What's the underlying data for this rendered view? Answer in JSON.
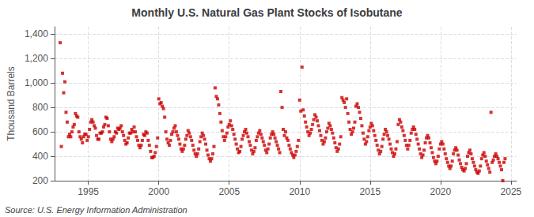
{
  "chart_data": {
    "type": "scatter",
    "title": "Monthly U.S. Natural Gas Plant Stocks of Isobutane",
    "ylabel": "Thousand Barrels",
    "annotation": "Source: U.S. Energy Information Administration",
    "color": "#cc0000",
    "marker": "square",
    "grid": true,
    "xlim": [
      1992.6,
      2025.4
    ],
    "ylim": [
      200,
      1460
    ],
    "xticks": [
      1995,
      2000,
      2005,
      2010,
      2015,
      2020,
      2025
    ],
    "yticks": [
      200,
      400,
      600,
      800,
      {
        "value": 1000,
        "label": "1,000"
      },
      {
        "value": 1200,
        "label": "1,200"
      },
      {
        "value": 1400,
        "label": "1,400"
      }
    ],
    "x": [
      1993.0,
      1993.083,
      1993.167,
      1993.25,
      1993.333,
      1993.417,
      1993.5,
      1993.583,
      1993.667,
      1993.75,
      1993.833,
      1993.917,
      1994.0,
      1994.083,
      1994.167,
      1994.25,
      1994.333,
      1994.417,
      1994.5,
      1994.583,
      1994.667,
      1994.75,
      1994.833,
      1994.917,
      1995.0,
      1995.083,
      1995.167,
      1995.25,
      1995.333,
      1995.417,
      1995.5,
      1995.583,
      1995.667,
      1995.75,
      1995.833,
      1995.917,
      1996.0,
      1996.083,
      1996.167,
      1996.25,
      1996.333,
      1996.417,
      1996.5,
      1996.583,
      1996.667,
      1996.75,
      1996.833,
      1996.917,
      1997.0,
      1997.083,
      1997.167,
      1997.25,
      1997.333,
      1997.417,
      1997.5,
      1997.583,
      1997.667,
      1997.75,
      1997.833,
      1997.917,
      1998.0,
      1998.083,
      1998.167,
      1998.25,
      1998.333,
      1998.417,
      1998.5,
      1998.583,
      1998.667,
      1998.75,
      1998.833,
      1998.917,
      1999.0,
      1999.083,
      1999.167,
      1999.25,
      1999.333,
      1999.417,
      1999.5,
      1999.583,
      1999.667,
      1999.75,
      1999.833,
      1999.917,
      2000.0,
      2000.083,
      2000.167,
      2000.25,
      2000.333,
      2000.417,
      2000.5,
      2000.583,
      2000.667,
      2000.75,
      2000.833,
      2000.917,
      2001.0,
      2001.083,
      2001.167,
      2001.25,
      2001.333,
      2001.417,
      2001.5,
      2001.583,
      2001.667,
      2001.75,
      2001.833,
      2001.917,
      2002.0,
      2002.083,
      2002.167,
      2002.25,
      2002.333,
      2002.417,
      2002.5,
      2002.583,
      2002.667,
      2002.75,
      2002.833,
      2002.917,
      2003.0,
      2003.083,
      2003.167,
      2003.25,
      2003.333,
      2003.417,
      2003.5,
      2003.583,
      2003.667,
      2003.75,
      2003.833,
      2003.917,
      2004.0,
      2004.083,
      2004.167,
      2004.25,
      2004.333,
      2004.417,
      2004.5,
      2004.583,
      2004.667,
      2004.75,
      2004.833,
      2004.917,
      2005.0,
      2005.083,
      2005.167,
      2005.25,
      2005.333,
      2005.417,
      2005.5,
      2005.583,
      2005.667,
      2005.75,
      2005.833,
      2005.917,
      2006.0,
      2006.083,
      2006.167,
      2006.25,
      2006.333,
      2006.417,
      2006.5,
      2006.583,
      2006.667,
      2006.75,
      2006.833,
      2006.917,
      2007.0,
      2007.083,
      2007.167,
      2007.25,
      2007.333,
      2007.417,
      2007.5,
      2007.583,
      2007.667,
      2007.75,
      2007.833,
      2007.917,
      2008.0,
      2008.083,
      2008.167,
      2008.25,
      2008.333,
      2008.417,
      2008.5,
      2008.583,
      2008.667,
      2008.75,
      2008.833,
      2008.917,
      2009.0,
      2009.083,
      2009.167,
      2009.25,
      2009.333,
      2009.417,
      2009.5,
      2009.583,
      2009.667,
      2009.75,
      2009.833,
      2009.917,
      2010.0,
      2010.083,
      2010.167,
      2010.25,
      2010.333,
      2010.417,
      2010.5,
      2010.583,
      2010.667,
      2010.75,
      2010.833,
      2010.917,
      2011.0,
      2011.083,
      2011.167,
      2011.25,
      2011.333,
      2011.417,
      2011.5,
      2011.583,
      2011.667,
      2011.75,
      2011.833,
      2011.917,
      2012.0,
      2012.083,
      2012.167,
      2012.25,
      2012.333,
      2012.417,
      2012.5,
      2012.583,
      2012.667,
      2012.75,
      2012.833,
      2012.917,
      2013.0,
      2013.083,
      2013.167,
      2013.25,
      2013.333,
      2013.417,
      2013.5,
      2013.583,
      2013.667,
      2013.75,
      2013.833,
      2013.917,
      2014.0,
      2014.083,
      2014.167,
      2014.25,
      2014.333,
      2014.417,
      2014.5,
      2014.583,
      2014.667,
      2014.75,
      2014.833,
      2014.917,
      2015.0,
      2015.083,
      2015.167,
      2015.25,
      2015.333,
      2015.417,
      2015.5,
      2015.583,
      2015.667,
      2015.75,
      2015.833,
      2015.917,
      2016.0,
      2016.083,
      2016.167,
      2016.25,
      2016.333,
      2016.417,
      2016.5,
      2016.583,
      2016.667,
      2016.75,
      2016.833,
      2016.917,
      2017.0,
      2017.083,
      2017.167,
      2017.25,
      2017.333,
      2017.417,
      2017.5,
      2017.583,
      2017.667,
      2017.75,
      2017.833,
      2017.917,
      2018.0,
      2018.083,
      2018.167,
      2018.25,
      2018.333,
      2018.417,
      2018.5,
      2018.583,
      2018.667,
      2018.75,
      2018.833,
      2018.917,
      2019.0,
      2019.083,
      2019.167,
      2019.25,
      2019.333,
      2019.417,
      2019.5,
      2019.583,
      2019.667,
      2019.75,
      2019.833,
      2019.917,
      2020.0,
      2020.083,
      2020.167,
      2020.25,
      2020.333,
      2020.417,
      2020.5,
      2020.583,
      2020.667,
      2020.75,
      2020.833,
      2020.917,
      2021.0,
      2021.083,
      2021.167,
      2021.25,
      2021.333,
      2021.417,
      2021.5,
      2021.583,
      2021.667,
      2021.75,
      2021.833,
      2021.917,
      2022.0,
      2022.083,
      2022.167,
      2022.25,
      2022.333,
      2022.417,
      2022.5,
      2022.583,
      2022.667,
      2022.75,
      2022.833,
      2022.917,
      2023.0,
      2023.083,
      2023.167,
      2023.25,
      2023.333,
      2023.417,
      2023.5,
      2023.583,
      2023.667,
      2023.75,
      2023.833,
      2023.917,
      2024.0,
      2024.083,
      2024.167,
      2024.25,
      2024.333,
      2024.417,
      2024.5,
      2024.583
    ],
    "values": [
      1330,
      480,
      1080,
      920,
      1010,
      760,
      680,
      560,
      580,
      560,
      600,
      640,
      660,
      750,
      730,
      720,
      600,
      560,
      540,
      510,
      560,
      580,
      580,
      530,
      560,
      620,
      680,
      700,
      680,
      650,
      630,
      570,
      540,
      540,
      590,
      590,
      600,
      640,
      660,
      720,
      710,
      650,
      600,
      540,
      520,
      540,
      560,
      600,
      590,
      630,
      620,
      630,
      650,
      600,
      570,
      530,
      500,
      510,
      550,
      590,
      590,
      620,
      600,
      640,
      600,
      560,
      530,
      490,
      470,
      490,
      530,
      580,
      570,
      600,
      590,
      530,
      490,
      440,
      390,
      390,
      400,
      430,
      480,
      550,
      870,
      830,
      840,
      810,
      790,
      720,
      600,
      540,
      510,
      490,
      530,
      580,
      600,
      630,
      650,
      600,
      570,
      540,
      500,
      460,
      440,
      460,
      490,
      540,
      570,
      610,
      590,
      560,
      530,
      490,
      450,
      420,
      400,
      420,
      460,
      520,
      560,
      590,
      570,
      540,
      500,
      450,
      410,
      380,
      360,
      380,
      420,
      480,
      960,
      890,
      870,
      820,
      750,
      680,
      610,
      560,
      530,
      560,
      590,
      640,
      660,
      690,
      650,
      620,
      580,
      540,
      500,
      460,
      430,
      440,
      480,
      540,
      570,
      600,
      620,
      590,
      560,
      520,
      490,
      450,
      420,
      440,
      470,
      530,
      560,
      590,
      610,
      580,
      550,
      520,
      490,
      450,
      430,
      460,
      500,
      550,
      580,
      600,
      580,
      550,
      520,
      490,
      460,
      430,
      930,
      800,
      620,
      570,
      600,
      550,
      530,
      490,
      460,
      430,
      410,
      390,
      410,
      440,
      480,
      530,
      860,
      770,
      1130,
      780,
      730,
      680,
      640,
      600,
      570,
      590,
      620,
      660,
      700,
      740,
      720,
      690,
      650,
      610,
      570,
      530,
      500,
      520,
      550,
      600,
      630,
      670,
      650,
      620,
      590,
      550,
      510,
      470,
      440,
      460,
      500,
      560,
      880,
      860,
      840,
      800,
      870,
      750,
      680,
      620,
      580,
      600,
      630,
      680,
      810,
      830,
      800,
      760,
      710,
      650,
      590,
      540,
      500,
      520,
      560,
      610,
      640,
      670,
      650,
      610,
      570,
      530,
      490,
      450,
      420,
      440,
      480,
      540,
      580,
      620,
      600,
      570,
      540,
      500,
      460,
      430,
      400,
      420,
      460,
      520,
      660,
      700,
      680,
      640,
      610,
      570,
      530,
      490,
      460,
      490,
      530,
      590,
      620,
      640,
      620,
      580,
      540,
      500,
      460,
      420,
      390,
      410,
      450,
      510,
      550,
      570,
      550,
      510,
      470,
      430,
      390,
      360,
      340,
      360,
      400,
      460,
      500,
      520,
      500,
      460,
      420,
      380,
      350,
      320,
      300,
      320,
      360,
      420,
      450,
      470,
      450,
      410,
      370,
      340,
      310,
      290,
      280,
      300,
      340,
      400,
      430,
      450,
      420,
      380,
      350,
      320,
      290,
      270,
      260,
      280,
      320,
      380,
      410,
      430,
      400,
      360,
      330,
      300,
      270,
      760,
      350,
      370,
      400,
      420,
      400,
      380,
      350,
      320,
      290,
      200,
      350,
      380
    ]
  }
}
